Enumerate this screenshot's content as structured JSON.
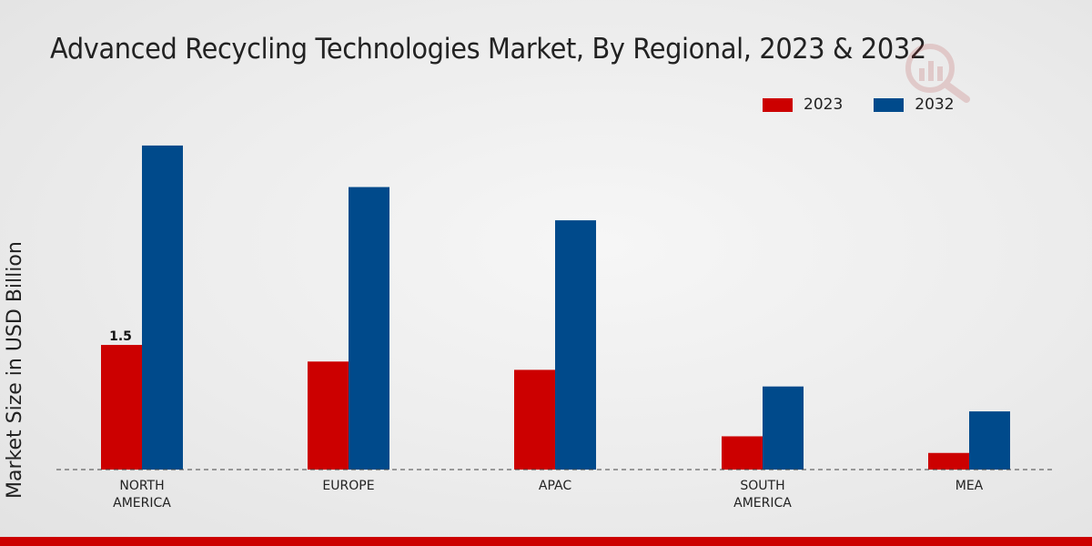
{
  "chart_data": {
    "type": "bar",
    "title": "Advanced Recycling Technologies Market, By Regional, 2023 & 2032",
    "xlabel": "",
    "ylabel": "Market Size in USD Billion",
    "categories": [
      "NORTH\nAMERICA",
      "EUROPE",
      "APAC",
      "SOUTH\nAMERICA",
      "MEA"
    ],
    "series": [
      {
        "name": "2023",
        "color": "#cc0000",
        "values": [
          1.5,
          1.3,
          1.2,
          0.4,
          0.2
        ]
      },
      {
        "name": "2032",
        "color": "#004a8b",
        "values": [
          3.9,
          3.4,
          3.0,
          1.0,
          0.7
        ]
      }
    ],
    "data_labels": [
      {
        "series": "2023",
        "category_index": 0,
        "text": "1.5"
      }
    ],
    "ylim": [
      0,
      4.6
    ],
    "grid": false,
    "legend": "top-right"
  },
  "colors": {
    "accent_bar": "#cc0000"
  }
}
